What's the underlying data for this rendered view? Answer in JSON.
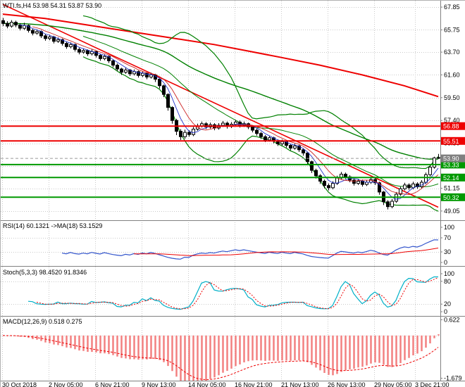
{
  "panels": {
    "main": {
      "title": "WTI.fs,H4 53.98 54.31 53.87 53.90"
    },
    "rsi": {
      "title": "RSI(14) 60.1321 ->MA(18) 53.1529"
    },
    "stoch": {
      "title": "Stoch(5,3,3) 98.4520 91.8346"
    },
    "macd": {
      "title": "MACD(12,26,9) 0.518 0.275"
    }
  },
  "time_axis": {
    "labels": [
      "30 Oct 2018",
      "2 Nov 05:00",
      "6 Nov 21:00",
      "9 Nov 13:00",
      "14 Nov 05:00",
      "16 Nov 21:00",
      "21 Nov 13:00",
      "26 Nov 13:00",
      "29 Nov 05:00",
      "3 Dec 21:00"
    ]
  },
  "colors": {
    "grid": "#c9c9c9",
    "red": "#ee0000",
    "green": "#008000",
    "level_red": "#ee0000",
    "level_green": "#009900",
    "price_box": "#808080",
    "bull": "#ffffff",
    "bear": "#000000",
    "candle_outline": "#000000",
    "ma_fast": "#2233cc",
    "ma_mid": "#cc2222",
    "axis_text": "#000000"
  },
  "chart_data": [
    {
      "type": "candlestick",
      "title": "WTI.fs,H4",
      "ohlc_header": {
        "open": "53.98",
        "high": "54.31",
        "low": "53.87",
        "close": "53.90"
      },
      "ylim": [
        48.2,
        68.44
      ],
      "y_tick_values": [
        67.85,
        65.75,
        63.7,
        61.6,
        59.5,
        57.4,
        55.3,
        53.2,
        51.15,
        49.05
      ],
      "y_tick_labels": [
        "67.85",
        "65.75",
        "63.70",
        "61.60",
        "59.50",
        "57.40",
        "55.30",
        "53.20",
        "51.15",
        "49.05"
      ],
      "levels": [
        {
          "price": 56.88,
          "label": "56.88",
          "color": "#ee0000"
        },
        {
          "price": 55.51,
          "label": "55.51",
          "color": "#ee0000"
        },
        {
          "price": 53.33,
          "label": "53.33",
          "color": "#009900"
        },
        {
          "price": 52.14,
          "label": "52.14",
          "color": "#009900"
        },
        {
          "price": 50.32,
          "label": "50.32",
          "color": "#009900"
        }
      ],
      "current_price": {
        "value": 53.9,
        "label": "53.90"
      },
      "trendline": {
        "from": [
          0,
          68.1
        ],
        "to": [
          103,
          49.4
        ],
        "color": "#ee0000"
      },
      "red_ma": [
        [
          0,
          67.2
        ],
        [
          10,
          66.8
        ],
        [
          20,
          66.2
        ],
        [
          30,
          65.6
        ],
        [
          40,
          65.0
        ],
        [
          50,
          64.4
        ],
        [
          58,
          63.8
        ],
        [
          66,
          63.2
        ],
        [
          75,
          62.5
        ],
        [
          85,
          61.6
        ],
        [
          95,
          60.6
        ],
        [
          103,
          59.6
        ]
      ],
      "overlays": {
        "bollinger_period": 20,
        "bollinger_mult": 2.2,
        "ema_period": 55,
        "sma_fast": 5,
        "sma_mid": 8
      },
      "candles": [
        [
          66.6,
          66.85,
          66.1,
          66.35
        ],
        [
          66.35,
          66.55,
          65.9,
          66.1
        ],
        [
          66.1,
          66.65,
          65.95,
          66.45
        ],
        [
          66.45,
          66.6,
          66.0,
          66.2
        ],
        [
          66.2,
          66.35,
          65.7,
          65.9
        ],
        [
          65.9,
          66.4,
          65.75,
          66.15
        ],
        [
          66.15,
          66.25,
          65.5,
          65.7
        ],
        [
          65.7,
          65.85,
          65.25,
          65.45
        ],
        [
          65.45,
          65.8,
          65.3,
          65.6
        ],
        [
          65.6,
          65.7,
          65.0,
          65.2
        ],
        [
          65.2,
          65.35,
          64.75,
          64.95
        ],
        [
          64.95,
          65.3,
          64.8,
          65.1
        ],
        [
          65.1,
          65.2,
          64.5,
          64.7
        ],
        [
          64.7,
          65.05,
          64.55,
          64.85
        ],
        [
          64.85,
          64.95,
          64.3,
          64.5
        ],
        [
          64.5,
          64.65,
          64.0,
          64.2
        ],
        [
          64.2,
          64.6,
          64.05,
          64.4
        ],
        [
          64.4,
          64.5,
          63.75,
          63.95
        ],
        [
          63.95,
          64.1,
          63.5,
          63.7
        ],
        [
          63.7,
          64.05,
          63.55,
          63.85
        ],
        [
          63.85,
          63.95,
          63.35,
          63.55
        ],
        [
          63.55,
          63.95,
          63.4,
          63.75
        ],
        [
          63.75,
          63.85,
          63.2,
          63.4
        ],
        [
          63.4,
          63.55,
          62.9,
          63.1
        ],
        [
          63.1,
          63.5,
          62.95,
          63.3
        ],
        [
          63.3,
          63.4,
          62.7,
          62.9
        ],
        [
          62.9,
          63.0,
          62.3,
          62.5
        ],
        [
          62.5,
          62.65,
          61.95,
          62.15
        ],
        [
          62.15,
          62.25,
          61.6,
          61.85
        ],
        [
          61.85,
          62.25,
          61.7,
          62.05
        ],
        [
          62.05,
          62.15,
          61.5,
          61.7
        ],
        [
          61.7,
          62.1,
          61.55,
          61.9
        ],
        [
          61.9,
          62.0,
          61.35,
          61.55
        ],
        [
          61.55,
          61.95,
          61.4,
          61.75
        ],
        [
          61.75,
          61.85,
          61.2,
          61.4
        ],
        [
          61.4,
          61.8,
          61.25,
          61.6
        ],
        [
          61.6,
          61.7,
          60.95,
          61.2
        ],
        [
          61.2,
          61.3,
          60.35,
          60.6
        ],
        [
          60.6,
          60.7,
          59.55,
          59.8
        ],
        [
          59.8,
          59.9,
          58.3,
          58.6
        ],
        [
          58.6,
          58.7,
          57.1,
          57.4
        ],
        [
          57.4,
          57.55,
          56.05,
          56.4
        ],
        [
          56.4,
          56.6,
          55.6,
          55.9
        ],
        [
          55.9,
          56.55,
          55.7,
          56.3
        ],
        [
          56.3,
          56.5,
          55.9,
          56.1
        ],
        [
          56.1,
          56.8,
          55.95,
          56.6
        ],
        [
          56.6,
          57.1,
          56.45,
          56.9
        ],
        [
          56.9,
          57.3,
          56.75,
          57.1
        ],
        [
          57.1,
          57.25,
          56.6,
          56.8
        ],
        [
          56.8,
          57.2,
          56.65,
          57.0
        ],
        [
          57.0,
          57.15,
          56.5,
          56.7
        ],
        [
          56.7,
          57.15,
          56.55,
          56.95
        ],
        [
          56.95,
          57.35,
          56.8,
          57.15
        ],
        [
          57.15,
          57.3,
          56.65,
          56.85
        ],
        [
          56.85,
          57.25,
          56.7,
          57.05
        ],
        [
          57.05,
          57.45,
          56.9,
          57.25
        ],
        [
          57.25,
          57.4,
          56.75,
          56.95
        ],
        [
          56.95,
          57.3,
          56.8,
          57.1
        ],
        [
          57.1,
          57.2,
          56.6,
          56.8
        ],
        [
          56.8,
          56.95,
          56.3,
          56.5
        ],
        [
          56.5,
          56.65,
          56.0,
          56.2
        ],
        [
          56.2,
          56.35,
          55.7,
          55.9
        ],
        [
          55.9,
          56.05,
          55.4,
          55.6
        ],
        [
          55.6,
          55.95,
          55.45,
          55.8
        ],
        [
          55.8,
          55.9,
          55.3,
          55.5
        ],
        [
          55.5,
          55.65,
          55.05,
          55.25
        ],
        [
          55.25,
          55.65,
          55.1,
          55.45
        ],
        [
          55.45,
          55.55,
          54.9,
          55.1
        ],
        [
          55.1,
          55.2,
          54.65,
          54.85
        ],
        [
          54.85,
          55.25,
          54.7,
          55.05
        ],
        [
          55.05,
          55.15,
          54.5,
          54.7
        ],
        [
          54.7,
          54.85,
          54.15,
          54.4
        ],
        [
          54.4,
          54.5,
          53.35,
          53.6
        ],
        [
          53.6,
          53.7,
          52.55,
          52.8
        ],
        [
          52.8,
          52.95,
          52.05,
          52.3
        ],
        [
          52.3,
          52.45,
          51.55,
          51.8
        ],
        [
          51.8,
          51.95,
          51.15,
          51.4
        ],
        [
          51.4,
          51.6,
          50.95,
          51.2
        ],
        [
          51.2,
          51.8,
          51.05,
          51.6
        ],
        [
          51.6,
          52.3,
          51.45,
          52.1
        ],
        [
          52.1,
          52.65,
          51.95,
          52.45
        ],
        [
          52.45,
          52.6,
          52.0,
          52.2
        ],
        [
          52.2,
          52.35,
          51.7,
          51.9
        ],
        [
          51.9,
          52.05,
          51.4,
          51.6
        ],
        [
          51.6,
          52.0,
          51.45,
          51.8
        ],
        [
          51.8,
          51.95,
          51.3,
          51.5
        ],
        [
          51.5,
          51.9,
          51.35,
          51.7
        ],
        [
          51.7,
          52.15,
          51.55,
          51.95
        ],
        [
          51.95,
          52.1,
          51.45,
          51.65
        ],
        [
          51.65,
          51.75,
          50.55,
          50.8
        ],
        [
          50.8,
          50.9,
          49.6,
          49.9
        ],
        [
          49.9,
          50.05,
          49.2,
          49.45
        ],
        [
          49.45,
          50.15,
          49.3,
          49.95
        ],
        [
          49.95,
          50.8,
          49.8,
          50.6
        ],
        [
          50.6,
          51.3,
          50.45,
          51.1
        ],
        [
          51.1,
          51.65,
          50.95,
          51.45
        ],
        [
          51.45,
          51.6,
          51.0,
          51.2
        ],
        [
          51.2,
          51.75,
          51.05,
          51.55
        ],
        [
          51.55,
          51.7,
          51.1,
          51.3
        ],
        [
          51.3,
          51.9,
          51.15,
          51.7
        ],
        [
          51.7,
          52.6,
          51.55,
          52.4
        ],
        [
          52.4,
          53.3,
          52.25,
          53.1
        ],
        [
          53.1,
          54.05,
          52.95,
          53.95
        ],
        [
          53.98,
          54.31,
          53.87,
          53.9
        ]
      ]
    },
    {
      "type": "line",
      "title": "RSI(14) ->MA(18)",
      "params": {
        "rsi_period": 14,
        "ma_period": 18
      },
      "current": {
        "rsi": 60.1321,
        "ma": 53.1529
      },
      "ylim": [
        0,
        100
      ],
      "tick_values": [
        100,
        70,
        30,
        0
      ],
      "tick_labels": [
        "100",
        "70",
        "30",
        "0"
      ],
      "grid_levels": [
        70,
        30
      ],
      "line_color": "#3355cc",
      "ma_color": "#ee0000",
      "derived_from": "chart_data[0].candles"
    },
    {
      "type": "line",
      "title": "Stoch(5,3,3)",
      "params": {
        "k_period": 5,
        "slowing": 3,
        "d_period": 3
      },
      "current": {
        "k": 98.452,
        "d": 91.8346
      },
      "ylim": [
        0,
        100
      ],
      "tick_values": [
        100,
        80,
        20,
        0
      ],
      "tick_labels": [
        "100",
        "80",
        "20",
        "0"
      ],
      "grid_levels": [
        80,
        20
      ],
      "k_color": "#00b0c8",
      "d_color": "#ee0000",
      "derived_from": "chart_data[0].candles"
    },
    {
      "type": "bar",
      "title": "MACD(12,26,9)",
      "params": {
        "fast": 12,
        "slow": 26,
        "signal": 9
      },
      "current": {
        "macd": 0.518,
        "signal": 0.275
      },
      "ylim": [
        -1.72,
        0.66
      ],
      "tick_values": [
        0.622,
        -1.679
      ],
      "tick_labels": [
        "0.622",
        "-1.679"
      ],
      "grid_levels": [
        0
      ],
      "hist_color": "#f28080",
      "signal_color": "#ee0000",
      "derived_from": "chart_data[0].candles"
    }
  ]
}
